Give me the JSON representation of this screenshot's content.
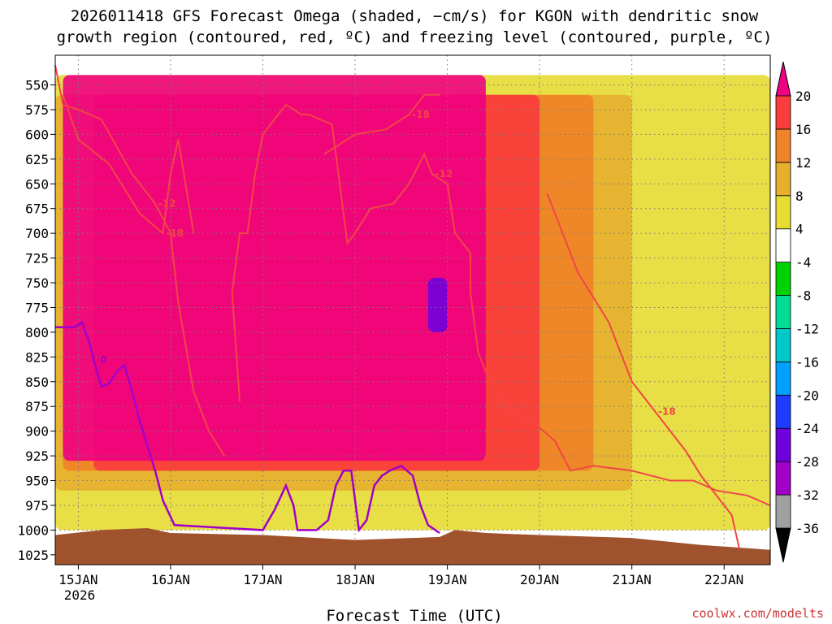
{
  "chart_data": {
    "type": "heatmap",
    "title_line1": "2026011418 GFS Forecast Omega (shaded, −cm/s) for KGON with dendritic snow",
    "title_line2": "growth region (contoured, red, ºC) and freezing level (contoured, purple, ºC)",
    "xlabel": "Forecast Time (UTC)",
    "credit": "coolwx.com/modelts",
    "y_axis": {
      "unit": "hPa",
      "range": [
        1035,
        520
      ],
      "ticks": [
        550,
        575,
        600,
        625,
        650,
        675,
        700,
        725,
        750,
        775,
        800,
        825,
        850,
        875,
        900,
        925,
        950,
        975,
        1000,
        1025
      ],
      "tick_labels": [
        "550",
        "575",
        "600",
        "625",
        "650",
        "675",
        "700",
        "725",
        "750",
        "775",
        "800",
        "825",
        "850",
        "875",
        "900",
        "925",
        "950",
        "975",
        "1000",
        "1025"
      ]
    },
    "x_axis": {
      "unit": "hours since 2026011418",
      "range": [
        0,
        186
      ],
      "ticks": [
        6,
        30,
        54,
        78,
        102,
        126,
        150,
        174
      ],
      "tick_labels": [
        "15JAN",
        "16JAN",
        "17JAN",
        "18JAN",
        "19JAN",
        "20JAN",
        "21JAN",
        "22JAN"
      ],
      "sub_label": "2026"
    },
    "colorbar": {
      "boundaries": [
        -36,
        -32,
        -28,
        -24,
        -20,
        -16,
        -12,
        -8,
        -4,
        4,
        8,
        12,
        16,
        20
      ],
      "labels": [
        "20",
        "16",
        "12",
        "8",
        "4",
        "-4",
        "-8",
        "-12",
        "-16",
        "-20",
        "-24",
        "-28",
        "-32",
        "-36"
      ],
      "colors": [
        "#000000",
        "#a0a0a0",
        "#a000c8",
        "#6e00dc",
        "#1e3cff",
        "#00a0ff",
        "#00c8c8",
        "#00dc96",
        "#00d200",
        "#ffffff",
        "#e6dc32",
        "#e6af2d",
        "#f08228",
        "#fa3c3c",
        "#f00082"
      ]
    },
    "omega_regions": [
      {
        "name": "positive-4-8",
        "value": 4,
        "color": "#e6dc32",
        "time": [
          0,
          186
        ],
        "pressure": [
          540,
          1000
        ]
      },
      {
        "name": "positive-8-12",
        "value": 8,
        "color": "#e6af2d",
        "time": [
          0,
          150
        ],
        "pressure": [
          560,
          960
        ]
      },
      {
        "name": "positive-12-16",
        "value": 12,
        "color": "#f08228",
        "time": [
          2,
          140
        ],
        "pressure": [
          560,
          940
        ]
      },
      {
        "name": "positive-16-20",
        "value": 16,
        "color": "#fa3c3c",
        "time": [
          10,
          126
        ],
        "pressure": [
          560,
          940
        ]
      },
      {
        "name": "positive-gt20",
        "value": 20,
        "color": "#f00082",
        "time": [
          2,
          112
        ],
        "pressure": [
          540,
          930
        ]
      },
      {
        "name": "negative-ascent-core",
        "value": -28,
        "color": "#6e00dc",
        "time": [
          97,
          102
        ],
        "pressure": [
          745,
          800
        ]
      }
    ],
    "freezing_level_0C": {
      "label": "0",
      "points": [
        [
          0,
          795
        ],
        [
          5,
          795
        ],
        [
          7,
          790
        ],
        [
          9,
          812
        ],
        [
          10,
          828
        ],
        [
          12,
          855
        ],
        [
          14,
          852
        ],
        [
          16,
          840
        ],
        [
          18,
          833
        ],
        [
          20,
          860
        ],
        [
          22,
          890
        ],
        [
          26,
          940
        ],
        [
          28,
          970
        ],
        [
          31,
          995
        ],
        [
          54,
          1000
        ],
        [
          57,
          980
        ],
        [
          60,
          955
        ],
        [
          62,
          975
        ],
        [
          63,
          1000
        ],
        [
          68,
          1000
        ],
        [
          71,
          990
        ],
        [
          73,
          955
        ],
        [
          75,
          940
        ],
        [
          77,
          940
        ],
        [
          79,
          1000
        ],
        [
          81,
          990
        ],
        [
          83,
          955
        ],
        [
          85,
          945
        ],
        [
          87,
          940
        ],
        [
          90,
          935
        ],
        [
          93,
          945
        ],
        [
          95,
          975
        ],
        [
          97,
          995
        ],
        [
          100,
          1003
        ]
      ]
    },
    "dgz_contours": [
      {
        "label": "-12",
        "points": [
          [
            0,
            530
          ],
          [
            2,
            570
          ],
          [
            6,
            575
          ],
          [
            12,
            585
          ],
          [
            20,
            640
          ],
          [
            26,
            670
          ],
          [
            30,
            700
          ],
          [
            32,
            770
          ],
          [
            36,
            860
          ],
          [
            40,
            900
          ],
          [
            44,
            925
          ]
        ]
      },
      {
        "label": "-18",
        "points": [
          [
            2,
            560
          ],
          [
            6,
            605
          ],
          [
            14,
            630
          ],
          [
            22,
            680
          ],
          [
            28,
            700
          ],
          [
            30,
            640
          ],
          [
            32,
            605
          ],
          [
            36,
            700
          ]
        ]
      },
      {
        "label": "-12",
        "points": [
          [
            48,
            870
          ],
          [
            46,
            760
          ],
          [
            48,
            700
          ],
          [
            50,
            700
          ],
          [
            52,
            640
          ],
          [
            54,
            600
          ],
          [
            58,
            580
          ],
          [
            60,
            570
          ],
          [
            64,
            580
          ],
          [
            66,
            580
          ],
          [
            72,
            590
          ],
          [
            76,
            710
          ],
          [
            78,
            700
          ],
          [
            82,
            675
          ],
          [
            88,
            670
          ],
          [
            92,
            650
          ],
          [
            96,
            620
          ],
          [
            98,
            640
          ],
          [
            102,
            650
          ],
          [
            104,
            700
          ],
          [
            108,
            720
          ],
          [
            108,
            760
          ],
          [
            110,
            820
          ],
          [
            114,
            860
          ],
          [
            118,
            880
          ],
          [
            124,
            890
          ],
          [
            130,
            910
          ],
          [
            134,
            940
          ],
          [
            140,
            935
          ],
          [
            150,
            940
          ],
          [
            160,
            950
          ],
          [
            166,
            950
          ],
          [
            172,
            960
          ],
          [
            180,
            965
          ],
          [
            186,
            975
          ]
        ]
      },
      {
        "label": "-18",
        "points": [
          [
            70,
            620
          ],
          [
            78,
            600
          ],
          [
            86,
            595
          ],
          [
            92,
            580
          ],
          [
            96,
            560
          ],
          [
            100,
            560
          ]
        ]
      },
      {
        "label": "-18",
        "points": [
          [
            128,
            660
          ],
          [
            132,
            700
          ],
          [
            136,
            740
          ],
          [
            140,
            765
          ],
          [
            144,
            790
          ],
          [
            150,
            850
          ],
          [
            156,
            880
          ],
          [
            160,
            900
          ],
          [
            164,
            920
          ],
          [
            168,
            945
          ],
          [
            172,
            965
          ],
          [
            176,
            985
          ],
          [
            178,
            1020
          ]
        ]
      }
    ],
    "terrain": {
      "color": "#a0522d",
      "points": [
        [
          0,
          1005
        ],
        [
          12,
          1000
        ],
        [
          24,
          998
        ],
        [
          30,
          1003
        ],
        [
          54,
          1005
        ],
        [
          78,
          1010
        ],
        [
          100,
          1007
        ],
        [
          104,
          1000
        ],
        [
          112,
          1003
        ],
        [
          126,
          1005
        ],
        [
          150,
          1008
        ],
        [
          168,
          1015
        ],
        [
          186,
          1020
        ]
      ]
    }
  }
}
